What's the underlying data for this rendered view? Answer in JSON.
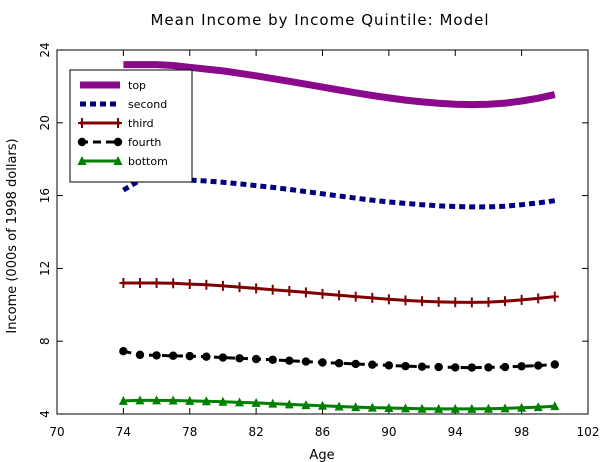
{
  "chart_data": {
    "type": "line",
    "title": "Mean Income by Income Quintile:  Model",
    "xlabel": "Age",
    "ylabel": "Income (000s of 1998 dollars)",
    "xlim": [
      70,
      102
    ],
    "ylim": [
      4,
      24
    ],
    "xticks": [
      70,
      74,
      78,
      82,
      86,
      90,
      94,
      98,
      102
    ],
    "yticks": [
      4,
      8,
      12,
      16,
      20,
      24
    ],
    "legend_position": "top-left",
    "x": [
      74,
      75,
      76,
      77,
      78,
      79,
      80,
      81,
      82,
      83,
      84,
      85,
      86,
      87,
      88,
      89,
      90,
      91,
      92,
      93,
      94,
      95,
      96,
      97,
      98,
      99,
      100
    ],
    "series": [
      {
        "name": "top",
        "color": "#8B0A8B",
        "style": "solid-thick",
        "marker": "none",
        "values": [
          23.2,
          23.2,
          23.2,
          23.15,
          23.05,
          22.95,
          22.85,
          22.72,
          22.58,
          22.43,
          22.28,
          22.12,
          21.96,
          21.8,
          21.65,
          21.5,
          21.37,
          21.25,
          21.15,
          21.07,
          21.02,
          21.0,
          21.02,
          21.08,
          21.2,
          21.35,
          21.55
        ]
      },
      {
        "name": "second",
        "color": "#000080",
        "style": "dotted",
        "marker": "none",
        "values": [
          16.3,
          16.85,
          16.9,
          16.88,
          16.85,
          16.8,
          16.73,
          16.65,
          16.55,
          16.45,
          16.34,
          16.22,
          16.1,
          15.98,
          15.86,
          15.75,
          15.65,
          15.57,
          15.5,
          15.44,
          15.4,
          15.38,
          15.38,
          15.42,
          15.5,
          15.6,
          15.72
        ]
      },
      {
        "name": "third",
        "color": "#800000",
        "style": "solid",
        "marker": "plus",
        "values": [
          11.2,
          11.2,
          11.2,
          11.18,
          11.14,
          11.1,
          11.04,
          10.97,
          10.9,
          10.83,
          10.76,
          10.68,
          10.6,
          10.52,
          10.45,
          10.38,
          10.3,
          10.24,
          10.2,
          10.16,
          10.14,
          10.13,
          10.15,
          10.2,
          10.27,
          10.35,
          10.45
        ]
      },
      {
        "name": "fourth",
        "color": "#000000",
        "style": "dashed",
        "marker": "circle",
        "values": [
          7.45,
          7.25,
          7.22,
          7.2,
          7.18,
          7.15,
          7.1,
          7.06,
          7.02,
          6.98,
          6.93,
          6.88,
          6.83,
          6.79,
          6.75,
          6.71,
          6.67,
          6.63,
          6.6,
          6.58,
          6.56,
          6.55,
          6.56,
          6.58,
          6.62,
          6.66,
          6.72
        ]
      },
      {
        "name": "bottom",
        "color": "#008000",
        "style": "solid",
        "marker": "triangle",
        "values": [
          4.72,
          4.75,
          4.75,
          4.74,
          4.72,
          4.7,
          4.67,
          4.64,
          4.61,
          4.57,
          4.53,
          4.49,
          4.45,
          4.41,
          4.38,
          4.35,
          4.33,
          4.31,
          4.29,
          4.28,
          4.28,
          4.28,
          4.29,
          4.31,
          4.34,
          4.38,
          4.43
        ]
      }
    ]
  }
}
